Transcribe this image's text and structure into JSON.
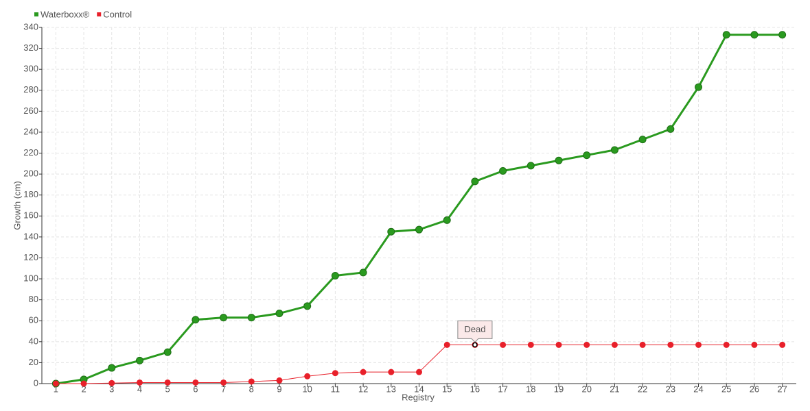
{
  "chart_data": {
    "type": "line",
    "x_label": "Registry",
    "y_label": "Growth (cm)",
    "categories": [
      "1",
      "2",
      "3",
      "4",
      "5",
      "6",
      "7",
      "8",
      "9",
      "10",
      "11",
      "12",
      "13",
      "14",
      "15",
      "16",
      "17",
      "18",
      "19",
      "20",
      "21",
      "22",
      "23",
      "24",
      "25",
      "26",
      "27"
    ],
    "series": [
      {
        "name": "Waterboxx®",
        "color": "#2a9a1f",
        "values": [
          0,
          4,
          15,
          22,
          30,
          61,
          63,
          63,
          67,
          74,
          103,
          106,
          145,
          147,
          156,
          193,
          203,
          208,
          213,
          218,
          223,
          233,
          243,
          283,
          333,
          333,
          333
        ]
      },
      {
        "name": "Control",
        "color": "#e8202a",
        "values": [
          0,
          0,
          0.5,
          1,
          1,
          1,
          1,
          2,
          3,
          7,
          10,
          11,
          11,
          11,
          37,
          37,
          37,
          37,
          37,
          37,
          37,
          37,
          37,
          37,
          37,
          37,
          37
        ]
      }
    ],
    "ylim": [
      0,
      340
    ],
    "yticks": [
      0,
      20,
      40,
      60,
      80,
      100,
      120,
      140,
      160,
      180,
      200,
      220,
      240,
      260,
      280,
      300,
      320,
      340
    ],
    "grid": true,
    "legend": "top-left",
    "annotations": [
      {
        "text": "Dead",
        "series": "Control",
        "at": "16"
      }
    ]
  }
}
